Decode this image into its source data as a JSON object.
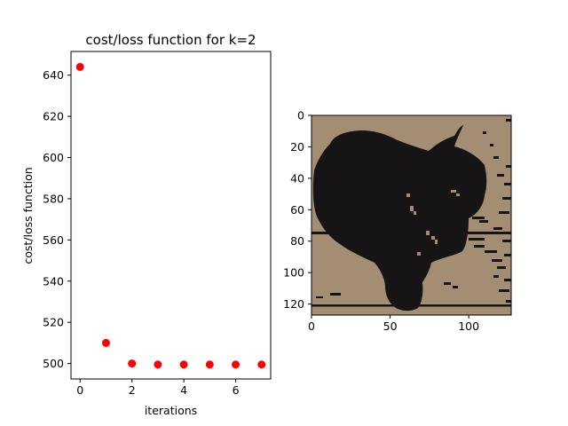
{
  "chart_data": [
    {
      "type": "scatter",
      "title": "cost/loss function for k=2",
      "xlabel": "iterations",
      "ylabel": "cost/loss function",
      "x": [
        0,
        1,
        2,
        3,
        4,
        5,
        6,
        7
      ],
      "y": [
        644,
        510,
        500,
        499.5,
        499.5,
        499.5,
        499.5,
        499.5
      ],
      "xlim": [
        -0.35,
        7.35
      ],
      "ylim": [
        492.5,
        651.5
      ],
      "xticks": [
        0,
        2,
        4,
        6
      ],
      "yticks": [
        500,
        520,
        540,
        560,
        580,
        600,
        620,
        640
      ],
      "marker_color": "#ff0000",
      "grid": false
    },
    {
      "type": "heatmap",
      "title": "",
      "xlabel": "",
      "ylabel": "",
      "xlim": [
        0,
        127
      ],
      "ylim": [
        127,
        0
      ],
      "xticks": [
        0,
        50,
        100
      ],
      "yticks": [
        0,
        20,
        40,
        60,
        80,
        100,
        120
      ],
      "palette": [
        "#161415",
        "#a38e74"
      ],
      "description_k": 2
    }
  ]
}
